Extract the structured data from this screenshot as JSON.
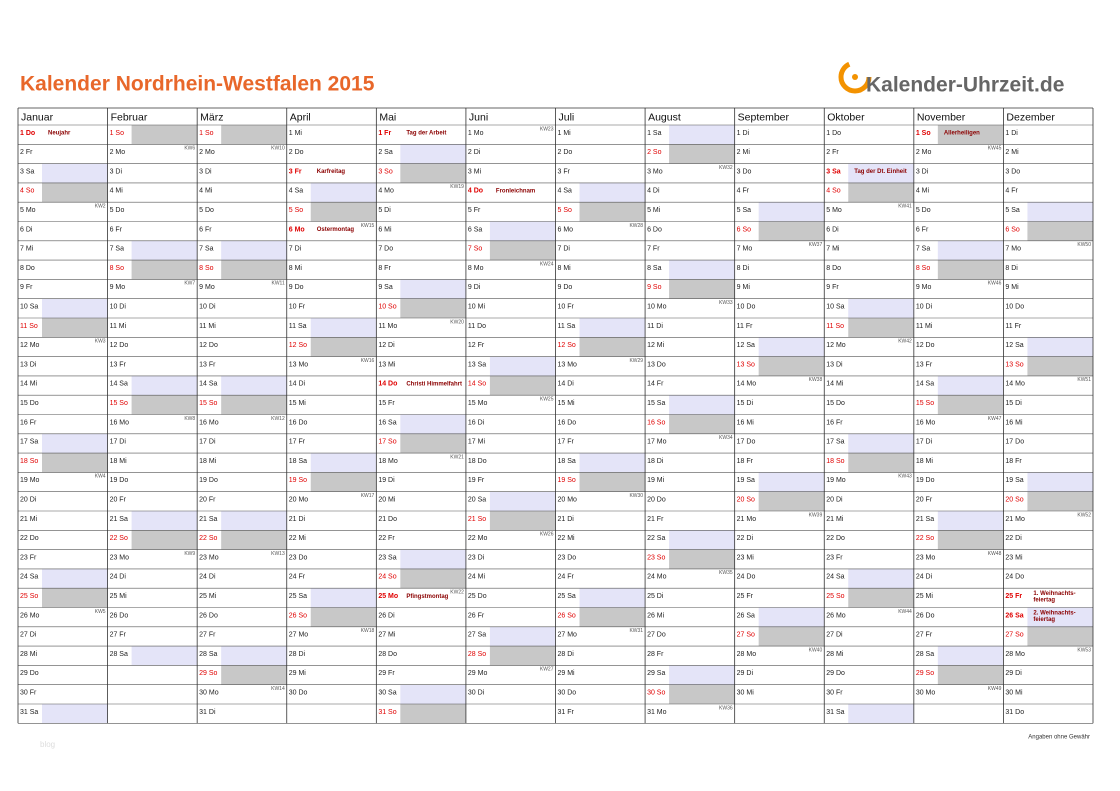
{
  "header": {
    "title": "Kalender Nordrhein-Westfalen 2015",
    "logo": "Kalender-Uhrzeit.de"
  },
  "footer": {
    "note": "Angaben ohne Gewähr",
    "watermark": "blog"
  },
  "day_styles": {
    "Sa": {
      "bg": "#e4e4f8",
      "color": "#222222"
    },
    "So": {
      "bg": "#c8c8c8",
      "color": "#e00000"
    }
  },
  "holiday_style": {
    "color": "#e00000",
    "label_color": "#8b0000"
  },
  "months": [
    {
      "name": "Januar",
      "days": [
        {
          "d": "1 Do",
          "h": "Neujahr"
        },
        "2 Fr",
        "3 Sa",
        "4 So",
        {
          "d": "5 Mo",
          "kw": "KW2"
        },
        "6 Di",
        "7 Mi",
        "8 Do",
        "9 Fr",
        "10 Sa",
        "11 So",
        {
          "d": "12 Mo",
          "kw": "KW3"
        },
        "13 Di",
        "14 Mi",
        "15 Do",
        "16 Fr",
        "17 Sa",
        "18 So",
        {
          "d": "19 Mo",
          "kw": "KW4"
        },
        "20 Di",
        "21 Mi",
        "22 Do",
        "23 Fr",
        "24 Sa",
        "25 So",
        {
          "d": "26 Mo",
          "kw": "KW5"
        },
        "27 Di",
        "28 Mi",
        "29 Do",
        "30 Fr",
        "31 Sa"
      ]
    },
    {
      "name": "Februar",
      "days": [
        "1 So",
        {
          "d": "2 Mo",
          "kw": "KW6"
        },
        "3 Di",
        "4 Mi",
        "5 Do",
        "6 Fr",
        "7 Sa",
        "8 So",
        {
          "d": "9 Mo",
          "kw": "KW7"
        },
        "10 Di",
        "11 Mi",
        "12 Do",
        "13 Fr",
        "14 Sa",
        "15 So",
        {
          "d": "16 Mo",
          "kw": "KW8"
        },
        "17 Di",
        "18 Mi",
        "19 Do",
        "20 Fr",
        "21 Sa",
        "22 So",
        {
          "d": "23 Mo",
          "kw": "KW9"
        },
        "24 Di",
        "25 Mi",
        "26 Do",
        "27 Fr",
        "28 Sa"
      ]
    },
    {
      "name": "März",
      "days": [
        "1 So",
        {
          "d": "2 Mo",
          "kw": "KW10"
        },
        "3 Di",
        "4 Mi",
        "5 Do",
        "6 Fr",
        "7 Sa",
        "8 So",
        {
          "d": "9 Mo",
          "kw": "KW11"
        },
        "10 Di",
        "11 Mi",
        "12 Do",
        "13 Fr",
        "14 Sa",
        "15 So",
        {
          "d": "16 Mo",
          "kw": "KW12"
        },
        "17 Di",
        "18 Mi",
        "19 Do",
        "20 Fr",
        "21 Sa",
        "22 So",
        {
          "d": "23 Mo",
          "kw": "KW13"
        },
        "24 Di",
        "25 Mi",
        "26 Do",
        "27 Fr",
        "28 Sa",
        "29 So",
        {
          "d": "30 Mo",
          "kw": "KW14"
        },
        "31 Di"
      ]
    },
    {
      "name": "April",
      "days": [
        "1 Mi",
        "2 Do",
        {
          "d": "3 Fr",
          "h": "Karfreitag"
        },
        "4 Sa",
        "5 So",
        {
          "d": "6 Mo",
          "kw": "KW15",
          "h": "Ostermontag"
        },
        "7 Di",
        "8 Mi",
        "9 Do",
        "10 Fr",
        "11 Sa",
        "12 So",
        {
          "d": "13 Mo",
          "kw": "KW16"
        },
        "14 Di",
        "15 Mi",
        "16 Do",
        "17 Fr",
        "18 Sa",
        "19 So",
        {
          "d": "20 Mo",
          "kw": "KW17"
        },
        "21 Di",
        "22 Mi",
        "23 Do",
        "24 Fr",
        "25 Sa",
        "26 So",
        {
          "d": "27 Mo",
          "kw": "KW18"
        },
        "28 Di",
        "29 Mi",
        "30 Do"
      ]
    },
    {
      "name": "Mai",
      "days": [
        {
          "d": "1 Fr",
          "h": "Tag der Arbeit"
        },
        "2 Sa",
        "3 So",
        {
          "d": "4 Mo",
          "kw": "KW19"
        },
        "5 Di",
        "6 Mi",
        "7 Do",
        "8 Fr",
        "9 Sa",
        "10 So",
        {
          "d": "11 Mo",
          "kw": "KW20"
        },
        "12 Di",
        "13 Mi",
        {
          "d": "14 Do",
          "h": "Christi Himmelfahrt"
        },
        "15 Fr",
        "16 Sa",
        "17 So",
        {
          "d": "18 Mo",
          "kw": "KW21"
        },
        "19 Di",
        "20 Mi",
        "21 Do",
        "22 Fr",
        "23 Sa",
        "24 So",
        {
          "d": "25 Mo",
          "kw": "KW22",
          "h": "Pfingstmontag"
        },
        "26 Di",
        "27 Mi",
        "28 Do",
        "29 Fr",
        "30 Sa",
        "31 So"
      ]
    },
    {
      "name": "Juni",
      "days": [
        {
          "d": "1 Mo",
          "kw": "KW23"
        },
        "2 Di",
        "3 Mi",
        {
          "d": "4 Do",
          "h": "Fronleichnam"
        },
        "5 Fr",
        "6 Sa",
        "7 So",
        {
          "d": "8 Mo",
          "kw": "KW24"
        },
        "9 Di",
        "10 Mi",
        "11 Do",
        "12 Fr",
        "13 Sa",
        "14 So",
        {
          "d": "15 Mo",
          "kw": "KW25"
        },
        "16 Di",
        "17 Mi",
        "18 Do",
        "19 Fr",
        "20 Sa",
        "21 So",
        {
          "d": "22 Mo",
          "kw": "KW26"
        },
        "23 Di",
        "24 Mi",
        "25 Do",
        "26 Fr",
        "27 Sa",
        "28 So",
        {
          "d": "29 Mo",
          "kw": "KW27"
        },
        "30 Di"
      ]
    },
    {
      "name": "Juli",
      "days": [
        "1 Mi",
        "2 Do",
        "3 Fr",
        "4 Sa",
        "5 So",
        {
          "d": "6 Mo",
          "kw": "KW28"
        },
        "7 Di",
        "8 Mi",
        "9 Do",
        "10 Fr",
        "11 Sa",
        "12 So",
        {
          "d": "13 Mo",
          "kw": "KW29"
        },
        "14 Di",
        "15 Mi",
        "16 Do",
        "17 Fr",
        "18 Sa",
        "19 So",
        {
          "d": "20 Mo",
          "kw": "KW30"
        },
        "21 Di",
        "22 Mi",
        "23 Do",
        "24 Fr",
        "25 Sa",
        "26 So",
        {
          "d": "27 Mo",
          "kw": "KW31"
        },
        "28 Di",
        "29 Mi",
        "30 Do",
        "31 Fr"
      ]
    },
    {
      "name": "August",
      "days": [
        "1 Sa",
        "2 So",
        {
          "d": "3 Mo",
          "kw": "KW32"
        },
        "4 Di",
        "5 Mi",
        "6 Do",
        "7 Fr",
        "8 Sa",
        "9 So",
        {
          "d": "10 Mo",
          "kw": "KW33"
        },
        "11 Di",
        "12 Mi",
        "13 Do",
        "14 Fr",
        "15 Sa",
        "16 So",
        {
          "d": "17 Mo",
          "kw": "KW34"
        },
        "18 Di",
        "19 Mi",
        "20 Do",
        "21 Fr",
        "22 Sa",
        "23 So",
        {
          "d": "24 Mo",
          "kw": "KW35"
        },
        "25 Di",
        "26 Mi",
        "27 Do",
        "28 Fr",
        "29 Sa",
        "30 So",
        {
          "d": "31 Mo",
          "kw": "KW36"
        }
      ]
    },
    {
      "name": "September",
      "days": [
        "1 Di",
        "2 Mi",
        "3 Do",
        "4 Fr",
        "5 Sa",
        "6 So",
        {
          "d": "7 Mo",
          "kw": "KW37"
        },
        "8 Di",
        "9 Mi",
        "10 Do",
        "11 Fr",
        "12 Sa",
        "13 So",
        {
          "d": "14 Mo",
          "kw": "KW38"
        },
        "15 Di",
        "16 Mi",
        "17 Do",
        "18 Fr",
        "19 Sa",
        "20 So",
        {
          "d": "21 Mo",
          "kw": "KW39"
        },
        "22 Di",
        "23 Mi",
        "24 Do",
        "25 Fr",
        "26 Sa",
        "27 So",
        {
          "d": "28 Mo",
          "kw": "KW40"
        },
        "29 Di",
        "30 Mi"
      ]
    },
    {
      "name": "Oktober",
      "days": [
        "1 Do",
        "2 Fr",
        {
          "d": "3 Sa",
          "h": "Tag der Dt. Einheit"
        },
        "4 So",
        {
          "d": "5 Mo",
          "kw": "KW41"
        },
        "6 Di",
        "7 Mi",
        "8 Do",
        "9 Fr",
        "10 Sa",
        "11 So",
        {
          "d": "12 Mo",
          "kw": "KW42"
        },
        "13 Di",
        "14 Mi",
        "15 Do",
        "16 Fr",
        "17 Sa",
        "18 So",
        {
          "d": "19 Mo",
          "kw": "KW43"
        },
        "20 Di",
        "21 Mi",
        "22 Do",
        "23 Fr",
        "24 Sa",
        "25 So",
        {
          "d": "26 Mo",
          "kw": "KW44"
        },
        "27 Di",
        "28 Mi",
        "29 Do",
        "30 Fr",
        "31 Sa"
      ]
    },
    {
      "name": "November",
      "days": [
        {
          "d": "1 So",
          "h": "Allerheiligen"
        },
        {
          "d": "2 Mo",
          "kw": "KW45"
        },
        "3 Di",
        "4 Mi",
        "5 Do",
        "6 Fr",
        "7 Sa",
        "8 So",
        {
          "d": "9 Mo",
          "kw": "KW46"
        },
        "10 Di",
        "11 Mi",
        "12 Do",
        "13 Fr",
        "14 Sa",
        "15 So",
        {
          "d": "16 Mo",
          "kw": "KW47"
        },
        "17 Di",
        "18 Mi",
        "19 Do",
        "20 Fr",
        "21 Sa",
        "22 So",
        {
          "d": "23 Mo",
          "kw": "KW48"
        },
        "24 Di",
        "25 Mi",
        "26 Do",
        "27 Fr",
        "28 Sa",
        "29 So",
        {
          "d": "30 Mo",
          "kw": "KW49"
        }
      ]
    },
    {
      "name": "Dezember",
      "days": [
        "1 Di",
        "2 Mi",
        "3 Do",
        "4 Fr",
        "5 Sa",
        "6 So",
        {
          "d": "7 Mo",
          "kw": "KW50"
        },
        "8 Di",
        "9 Mi",
        "10 Do",
        "11 Fr",
        "12 Sa",
        "13 So",
        {
          "d": "14 Mo",
          "kw": "KW51"
        },
        "15 Di",
        "16 Mi",
        "17 Do",
        "18 Fr",
        "19 Sa",
        "20 So",
        {
          "d": "21 Mo",
          "kw": "KW52"
        },
        "22 Di",
        "23 Mi",
        "24 Do",
        {
          "d": "25 Fr",
          "h": "1. Weihnachts-feiertag"
        },
        {
          "d": "26 Sa",
          "h": "2. Weihnachts-feiertag"
        },
        "27 So",
        {
          "d": "28 Mo",
          "kw": "KW53"
        },
        "29 Di",
        "30 Mi",
        "31 Do"
      ]
    }
  ]
}
